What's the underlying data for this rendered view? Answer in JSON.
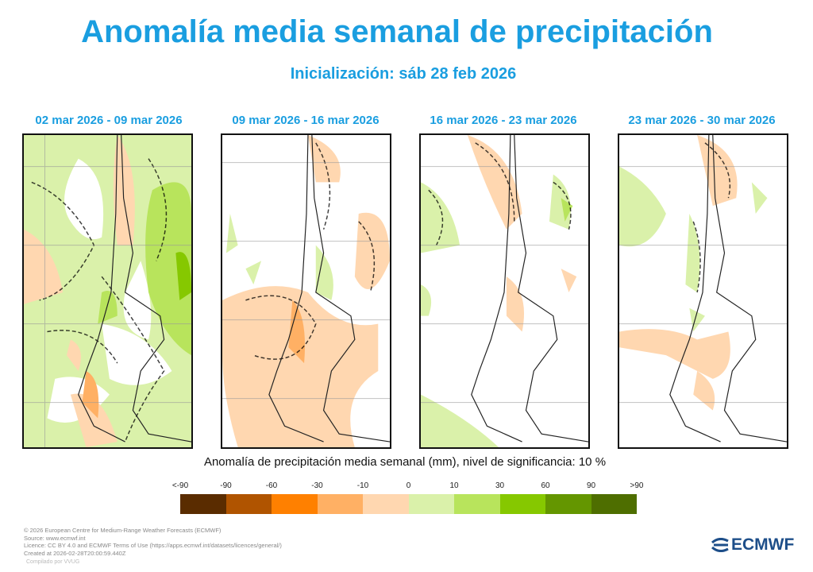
{
  "header": {
    "title": "Anomalía media semanal de precipitación",
    "subtitle": "Inicialización: sáb 28 feb 2026"
  },
  "panels": [
    {
      "title": "02 mar 2026 - 09 mar 2026",
      "dominant": "wet"
    },
    {
      "title": "09 mar 2026 - 16 mar 2026",
      "dominant": "dry"
    },
    {
      "title": "16 mar 2026 - 23 mar 2026",
      "dominant": "mixed"
    },
    {
      "title": "23 mar 2026 - 30 mar 2026",
      "dominant": "mixed"
    }
  ],
  "colorbar": {
    "title": "Anomalía de precipitación media semanal (mm), nivel de significancia: 10 %",
    "labels": [
      "<-90",
      "-90",
      "-60",
      "-30",
      "-10",
      "0",
      "10",
      "30",
      "60",
      "90",
      ">90"
    ],
    "colors": [
      "#5a2c00",
      "#b05400",
      "#ff8000",
      "#ffb064",
      "#ffd7b0",
      "#daf1aa",
      "#b8e45c",
      "#86c800",
      "#649600",
      "#4e6e00"
    ]
  },
  "footer": {
    "lines": [
      "© 2026 European Centre for Medium-Range Weather Forecasts (ECMWF)",
      "Source: www.ecmwf.int",
      "Licence: CC BY 4.0 and ECMWF Terms of Use (https://apps.ecmwf.int/datasets/licences/general/)",
      "Created at 2026-02-28T20:00:59.440Z"
    ],
    "compiled": "Compilado por VVUG"
  },
  "logo": {
    "text": "ECMWF"
  }
}
